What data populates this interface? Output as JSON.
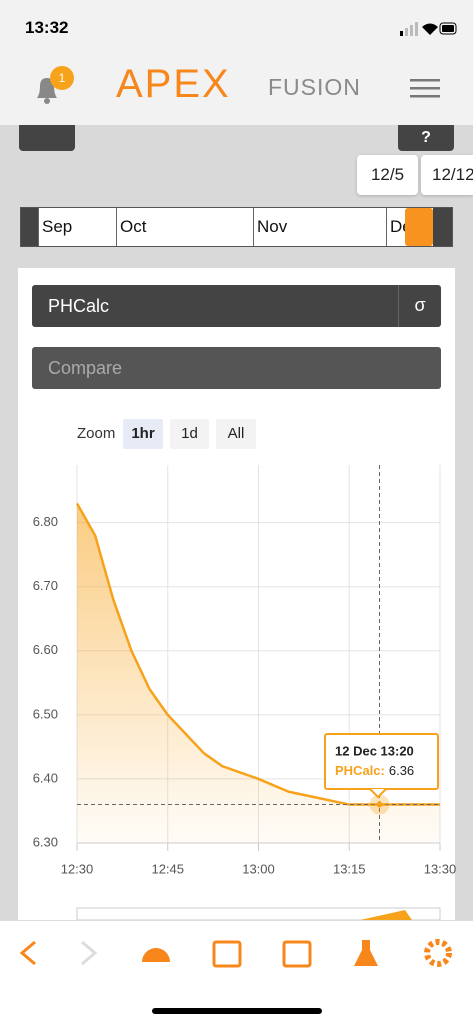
{
  "status_bar": {
    "time": "13:32"
  },
  "header": {
    "badge": "1",
    "logo_main": "APEX",
    "logo_sub": "FUSION"
  },
  "date_markers": [
    "12/5",
    "12/12"
  ],
  "timeline": [
    "Sep",
    "Oct",
    "Nov",
    "De"
  ],
  "selector": {
    "parameter": "PHCalc",
    "sigma": "σ",
    "compare": "Compare"
  },
  "zoom": {
    "label": "Zoom",
    "options": [
      "1hr",
      "1d",
      "All"
    ]
  },
  "chart_data": {
    "type": "line",
    "x": [
      "12:30",
      "12:33",
      "12:36",
      "12:39",
      "12:42",
      "12:45",
      "12:48",
      "12:51",
      "12:54",
      "12:57",
      "13:00",
      "13:05",
      "13:10",
      "13:15",
      "13:20",
      "13:25",
      "13:30"
    ],
    "series": [
      {
        "name": "PHCalc",
        "color": "#f7a21b",
        "values": [
          6.83,
          6.78,
          6.68,
          6.6,
          6.54,
          6.5,
          6.47,
          6.44,
          6.42,
          6.41,
          6.4,
          6.38,
          6.37,
          6.36,
          6.36,
          6.36,
          6.36
        ]
      }
    ],
    "xlim": [
      "12:30",
      "13:30"
    ],
    "xticks": [
      "12:30",
      "12:45",
      "13:00",
      "13:15",
      "13:30"
    ],
    "ylim": [
      6.3,
      6.89
    ],
    "yticks": [
      {
        "value": 6.3,
        "label": "6.30"
      },
      {
        "value": 6.4,
        "label": "6.40"
      },
      {
        "value": 6.5,
        "label": "6.50"
      },
      {
        "value": 6.6,
        "label": "6.60"
      },
      {
        "value": 6.7,
        "label": "6.70"
      },
      {
        "value": 6.8,
        "label": "6.80"
      }
    ],
    "grid": true,
    "crosshair_x": "13:20",
    "tooltip": {
      "header": "12 Dec 13:20",
      "label": "PHCalc:",
      "value": 6.36
    }
  }
}
